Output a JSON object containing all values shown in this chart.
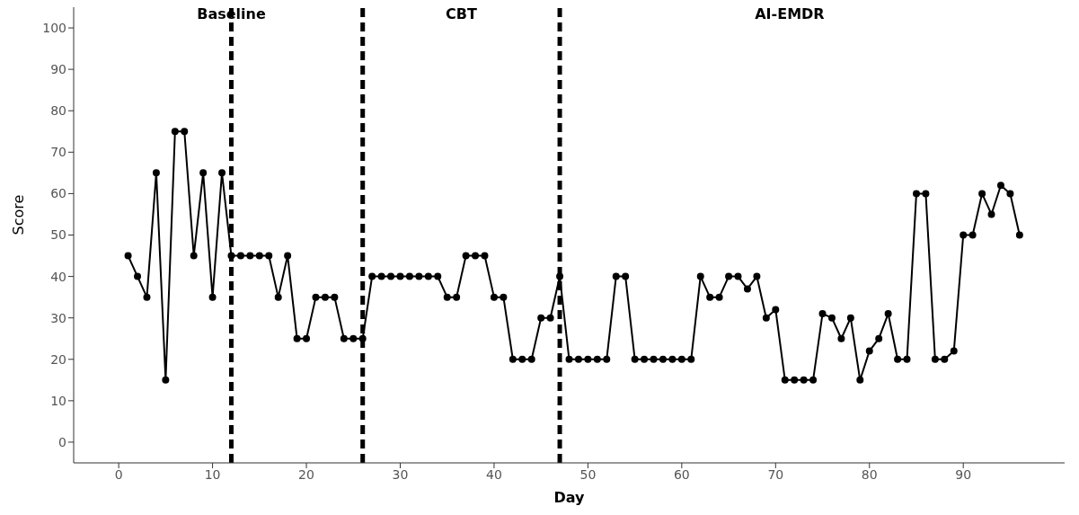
{
  "chart_data": {
    "type": "line",
    "xlabel": "Day",
    "ylabel": "Score",
    "x": [
      1,
      2,
      3,
      4,
      5,
      6,
      7,
      8,
      9,
      10,
      11,
      12,
      13,
      14,
      15,
      16,
      17,
      18,
      19,
      20,
      21,
      22,
      23,
      24,
      25,
      26,
      27,
      28,
      29,
      30,
      31,
      32,
      33,
      34,
      35,
      36,
      37,
      38,
      39,
      40,
      41,
      42,
      43,
      44,
      45,
      46,
      47,
      48,
      49,
      50,
      51,
      52,
      53,
      54,
      55,
      56,
      57,
      58,
      59,
      60,
      61,
      62,
      63,
      64,
      65,
      66,
      67,
      68,
      69,
      70,
      71,
      72,
      73,
      74,
      75,
      76,
      77,
      78,
      79,
      80,
      81,
      82,
      83,
      84,
      85,
      86,
      87,
      88,
      89,
      90,
      91,
      92,
      93,
      94,
      95,
      96
    ],
    "series": [
      {
        "color": "#000000",
        "values": [
          45,
          40,
          35,
          65,
          15,
          75,
          75,
          45,
          65,
          35,
          65,
          45,
          45,
          45,
          45,
          45,
          35,
          45,
          25,
          25,
          35,
          35,
          35,
          25,
          25,
          25,
          40,
          40,
          40,
          40,
          40,
          40,
          40,
          40,
          35,
          35,
          45,
          45,
          45,
          35,
          35,
          20,
          20,
          20,
          30,
          30,
          40,
          20,
          20,
          20,
          20,
          20,
          40,
          40,
          20,
          20,
          20,
          20,
          20,
          20,
          20,
          40,
          35,
          35,
          40,
          40,
          37,
          40,
          30,
          32,
          15,
          15,
          15,
          15,
          31,
          30,
          25,
          30,
          15,
          22,
          25,
          31,
          20,
          20,
          60,
          60,
          20,
          20,
          22,
          50,
          50,
          60,
          55,
          62,
          60,
          50
        ]
      }
    ],
    "xlim": [
      -4.8,
      100.8
    ],
    "xticks": [
      0,
      10,
      20,
      30,
      40,
      50,
      60,
      70,
      80,
      90
    ],
    "ylim": [
      -5,
      105
    ],
    "yticks": [
      0,
      10,
      20,
      30,
      40,
      50,
      60,
      70,
      80,
      90,
      100
    ],
    "grid": false,
    "legend": false,
    "marker": "circle",
    "line_style": "solid",
    "ref_lines": [
      {
        "axis": "x",
        "value": 12,
        "color": "#000000",
        "line_style": "dashed"
      },
      {
        "axis": "x",
        "value": 26,
        "color": "#000000",
        "line_style": "dashed"
      },
      {
        "axis": "x",
        "value": 47,
        "color": "#000000",
        "line_style": "dashed"
      }
    ],
    "annotations": [
      "Baseline",
      "CBT",
      "AI-EMDR"
    ]
  }
}
